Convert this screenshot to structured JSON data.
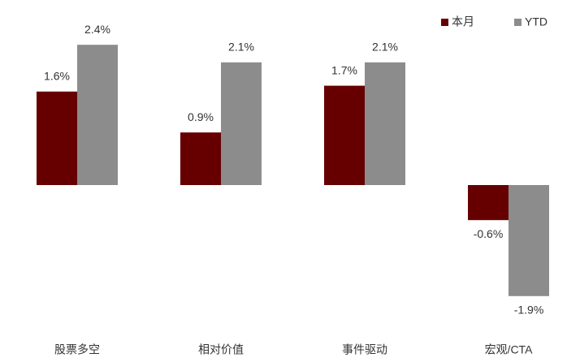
{
  "chart_data": {
    "type": "bar",
    "categories": [
      "股票多空",
      "相对价值",
      "事件驱动",
      "宏观/CTA"
    ],
    "series": [
      {
        "name": "本月",
        "color": "#660000",
        "values": [
          1.6,
          0.9,
          1.7,
          -0.6
        ],
        "value_labels": [
          "1.6%",
          "0.9%",
          "1.7%",
          "-0.6%"
        ]
      },
      {
        "name": "YTD",
        "color": "#8c8c8c",
        "values": [
          2.4,
          2.1,
          2.1,
          -1.9
        ],
        "value_labels": [
          "2.4%",
          "2.1%",
          "2.1%",
          "-1.9%"
        ]
      }
    ],
    "legend": "top-right"
  }
}
